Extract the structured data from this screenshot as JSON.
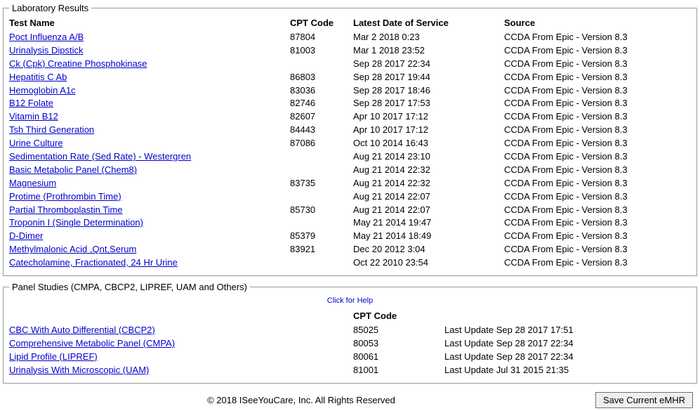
{
  "labResults": {
    "legend": "Laboratory Results",
    "headers": {
      "test": "Test Name",
      "cpt": "CPT Code",
      "date": "Latest Date of Service",
      "source": "Source"
    },
    "rows": [
      {
        "test": "Poct Influenza A/B",
        "cpt": "87804",
        "date": "Mar 2 2018 0:23",
        "source": "CCDA From Epic - Version 8.3"
      },
      {
        "test": "Urinalysis Dipstick",
        "cpt": "81003",
        "date": "Mar 1 2018 23:52",
        "source": "CCDA From Epic - Version 8.3"
      },
      {
        "test": "Ck (Cpk) Creatine Phosphokinase",
        "cpt": "",
        "date": "Sep 28 2017 22:34",
        "source": "CCDA From Epic - Version 8.3"
      },
      {
        "test": "Hepatitis C Ab",
        "cpt": "86803",
        "date": "Sep 28 2017 19:44",
        "source": "CCDA From Epic - Version 8.3"
      },
      {
        "test": "Hemoglobin A1c",
        "cpt": "83036",
        "date": "Sep 28 2017 18:46",
        "source": "CCDA From Epic - Version 8.3"
      },
      {
        "test": "B12 Folate",
        "cpt": "82746",
        "date": "Sep 28 2017 17:53",
        "source": "CCDA From Epic - Version 8.3"
      },
      {
        "test": "Vitamin B12",
        "cpt": "82607",
        "date": "Apr 10 2017 17:12",
        "source": "CCDA From Epic - Version 8.3"
      },
      {
        "test": "Tsh Third Generation",
        "cpt": "84443",
        "date": "Apr 10 2017 17:12",
        "source": "CCDA From Epic - Version 8.3"
      },
      {
        "test": "Urine Culture",
        "cpt": "87086",
        "date": "Oct 10 2014 16:43",
        "source": "CCDA From Epic - Version 8.3"
      },
      {
        "test": "Sedimentation Rate (Sed Rate) - Westergren",
        "cpt": "",
        "date": "Aug 21 2014 23:10",
        "source": "CCDA From Epic - Version 8.3"
      },
      {
        "test": "Basic Metabolic Panel (Chem8)",
        "cpt": "",
        "date": "Aug 21 2014 22:32",
        "source": "CCDA From Epic - Version 8.3"
      },
      {
        "test": "Magnesium",
        "cpt": "83735",
        "date": "Aug 21 2014 22:32",
        "source": "CCDA From Epic - Version 8.3"
      },
      {
        "test": "Protime (Prothrombin Time)",
        "cpt": "",
        "date": "Aug 21 2014 22:07",
        "source": "CCDA From Epic - Version 8.3"
      },
      {
        "test": "Partial Thromboplastin Time",
        "cpt": "85730",
        "date": "Aug 21 2014 22:07",
        "source": "CCDA From Epic - Version 8.3"
      },
      {
        "test": "Troponin I (Single Determination)",
        "cpt": "",
        "date": "May 21 2014 19:47",
        "source": "CCDA From Epic - Version 8.3"
      },
      {
        "test": "D-Dimer",
        "cpt": "85379",
        "date": "May 21 2014 18:49",
        "source": "CCDA From Epic - Version 8.3"
      },
      {
        "test": "Methylmalonic Acid ,Qnt,Serum",
        "cpt": "83921",
        "date": "Dec 20 2012 3:04",
        "source": "CCDA From Epic - Version 8.3"
      },
      {
        "test": "Catecholamine, Fractionated, 24 Hr Urine",
        "cpt": "",
        "date": "Oct 22 2010 23:54",
        "source": "CCDA From Epic - Version 8.3"
      }
    ]
  },
  "panelStudies": {
    "legend": "Panel Studies (CMPA, CBCP2, LIPREF, UAM and Others)",
    "helpText": "Click for Help",
    "cptHeader": "CPT Code",
    "lastUpdatePrefix": "Last Update ",
    "rows": [
      {
        "name": "CBC With Auto Differential (CBCP2)",
        "cpt": "85025",
        "updated": "Sep 28 2017 17:51"
      },
      {
        "name": "Comprehensive Metabolic Panel (CMPA)",
        "cpt": "80053",
        "updated": "Sep 28 2017 22:34"
      },
      {
        "name": "Lipid Profile (LIPREF)",
        "cpt": "80061",
        "updated": "Sep 28 2017 22:34"
      },
      {
        "name": "Urinalysis With Microscopic (UAM)",
        "cpt": "81001",
        "updated": "Jul 31 2015 21:35"
      }
    ]
  },
  "footer": {
    "copyright": "© 2018 ISeeYouCare, Inc. All Rights Reserved",
    "saveBtn": "Save Current eMHR"
  }
}
